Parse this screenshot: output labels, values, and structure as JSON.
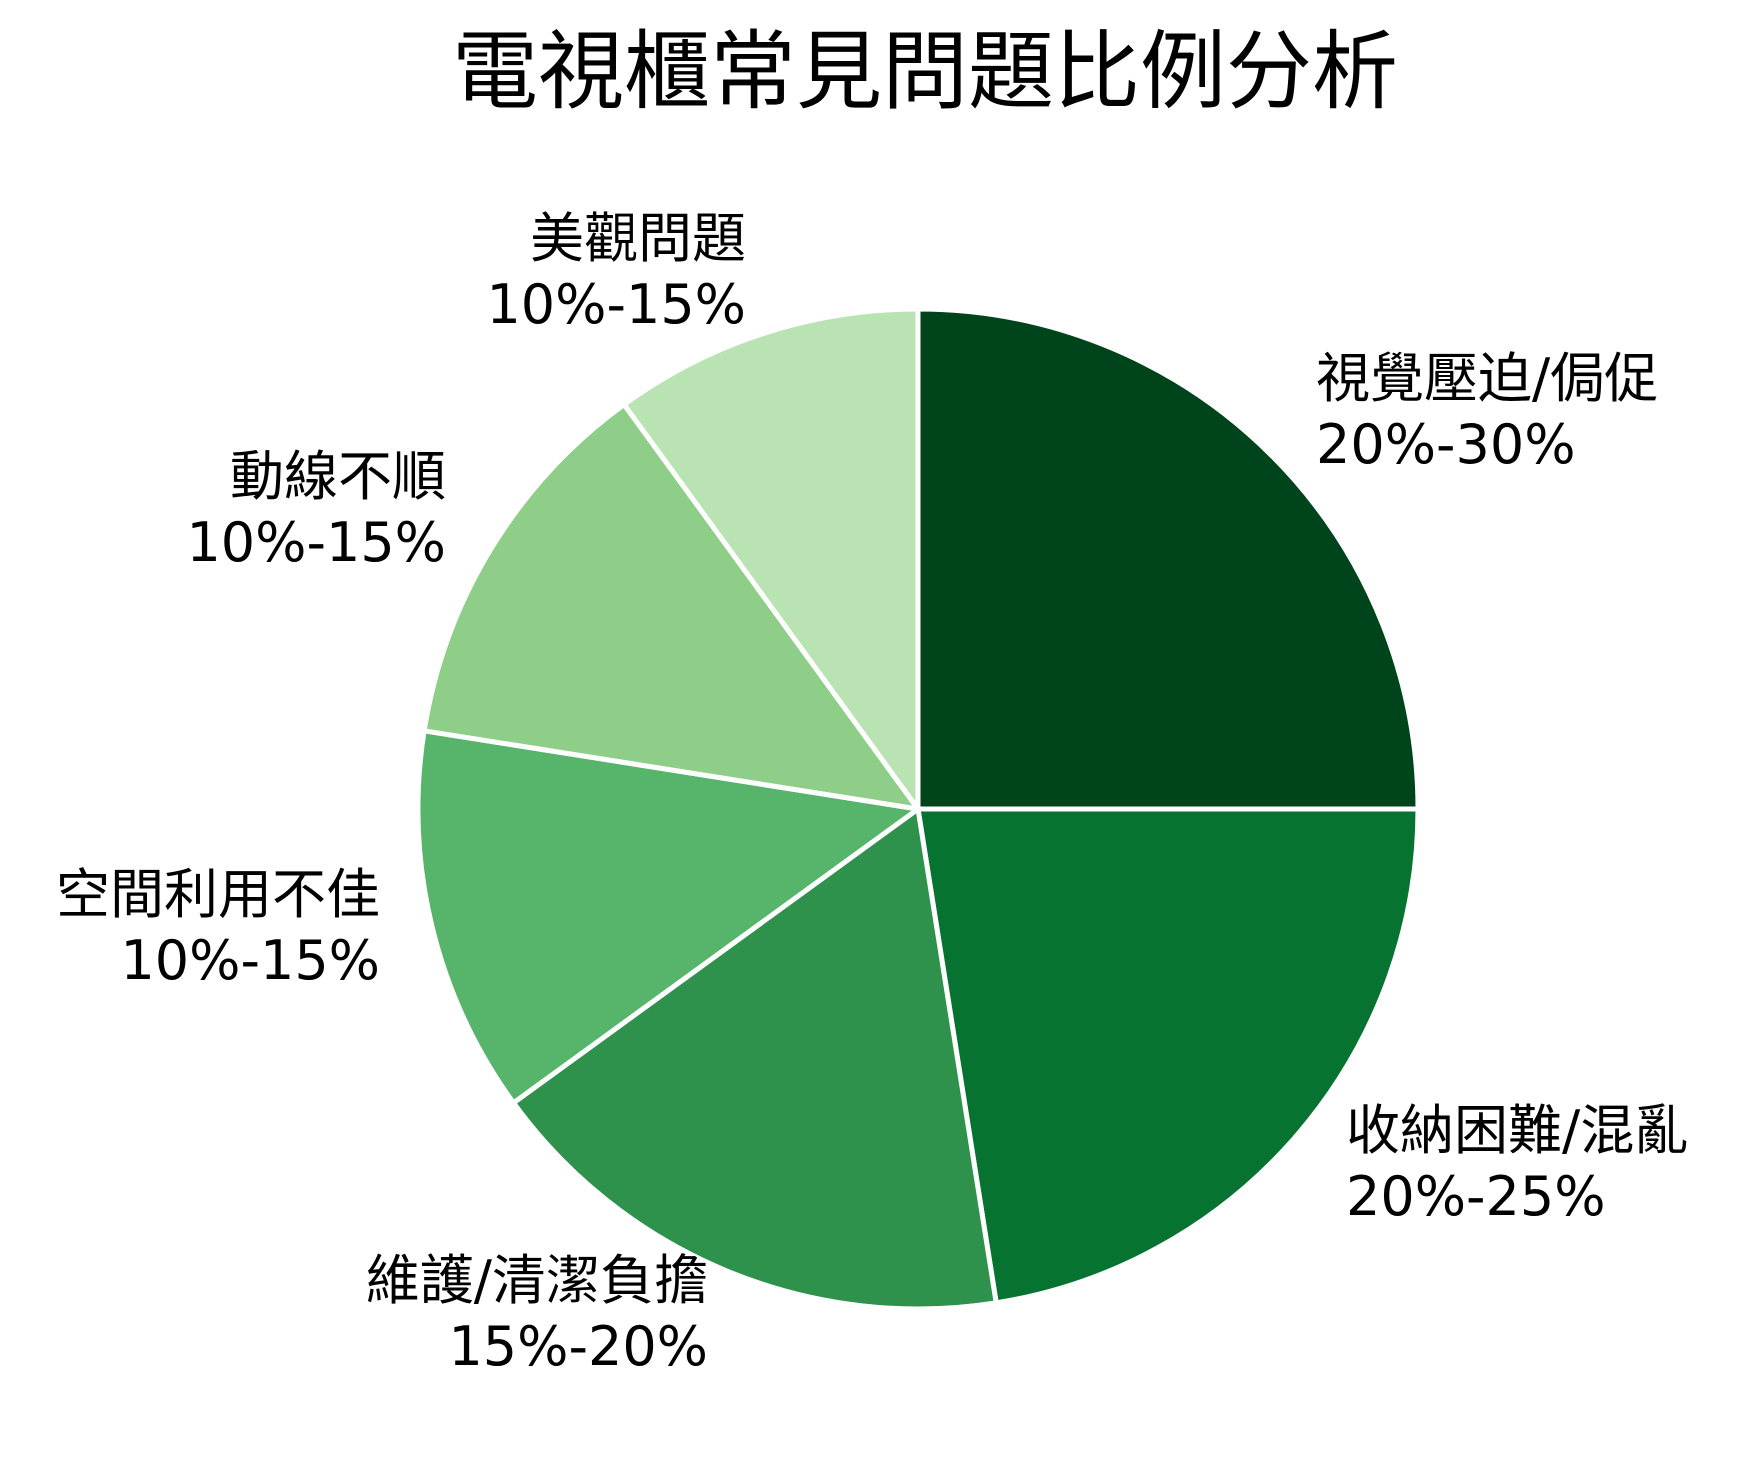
{
  "chart_data": {
    "type": "pie",
    "title": "電視櫃常見問題比例分析",
    "start_angle": "top (12 o'clock), clockwise",
    "slices": [
      {
        "label": "視覺壓迫/侷促",
        "range": "20%-30%",
        "value": 25,
        "color": "#00441b"
      },
      {
        "label": "收納困難/混亂",
        "range": "20%-25%",
        "value": 22.5,
        "color": "#077331"
      },
      {
        "label": "維護/清潔負擔",
        "range": "15%-20%",
        "value": 17.5,
        "color": "#2e924d"
      },
      {
        "label": "空間利用不佳",
        "range": "10%-15%",
        "value": 12.5,
        "color": "#56b56b"
      },
      {
        "label": "動線不順",
        "range": "10%-15%",
        "value": 12.5,
        "color": "#8ece88"
      },
      {
        "label": "美觀問題",
        "range": "10%-15%",
        "value": 10,
        "color": "#b9e3b2"
      }
    ],
    "center": [
      918,
      809
    ],
    "radius": 500,
    "separator_color": "#ffffff",
    "legend": "none (direct labels)"
  }
}
